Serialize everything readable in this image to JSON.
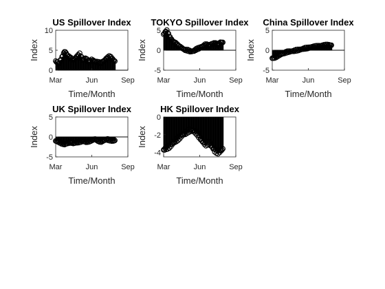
{
  "chart_data": [
    {
      "type": "bar",
      "title": "US Spillover Index",
      "xlabel": "Time/Month",
      "ylabel": "Index",
      "xticks": [
        "Mar",
        "Jun",
        "Sep"
      ],
      "xlim": [
        0,
        6
      ],
      "yticks": [
        "0",
        "5",
        "10"
      ],
      "ylim": [
        0,
        10
      ],
      "baseline": 0,
      "days": 150,
      "series": [
        {
          "marker": "o",
          "color": "#000000",
          "values": [
            [
              0.0,
              2.3
            ],
            [
              0.25,
              1.5
            ],
            [
              0.5,
              3.0
            ],
            [
              0.75,
              4.8
            ],
            [
              1.0,
              3.6
            ],
            [
              1.25,
              3.0
            ],
            [
              1.5,
              2.6
            ],
            [
              1.75,
              3.4
            ],
            [
              2.0,
              4.1
            ],
            [
              2.25,
              2.4
            ],
            [
              2.5,
              3.1
            ],
            [
              2.75,
              2.0
            ],
            [
              3.0,
              2.6
            ],
            [
              3.25,
              2.2
            ],
            [
              3.5,
              2.0
            ],
            [
              3.75,
              1.8
            ],
            [
              4.0,
              2.3
            ],
            [
              4.25,
              3.0
            ],
            [
              4.5,
              3.5
            ],
            [
              4.75,
              2.7
            ],
            [
              4.95,
              2.1
            ]
          ]
        }
      ]
    },
    {
      "type": "bar",
      "title": "TOKYO Spillover Index",
      "xlabel": "Time/Month",
      "ylabel": "Index",
      "xticks": [
        "Mar",
        "Jun",
        "Sep"
      ],
      "xlim": [
        0,
        6
      ],
      "yticks": [
        "-5",
        "0",
        "5"
      ],
      "ylim": [
        -5,
        5
      ],
      "baseline": 0,
      "days": 150,
      "series": [
        {
          "marker": "o",
          "color": "#000000",
          "values": [
            [
              0.0,
              4.0
            ],
            [
              0.25,
              5.0
            ],
            [
              0.5,
              3.3
            ],
            [
              0.75,
              2.3
            ],
            [
              1.0,
              1.8
            ],
            [
              1.25,
              1.0
            ],
            [
              1.5,
              0.6
            ],
            [
              1.75,
              0.1
            ],
            [
              2.0,
              0.0
            ],
            [
              2.25,
              -0.3
            ],
            [
              2.5,
              -0.2
            ],
            [
              2.75,
              0.3
            ],
            [
              3.0,
              0.6
            ],
            [
              3.25,
              1.0
            ],
            [
              3.5,
              1.5
            ],
            [
              3.75,
              1.1
            ],
            [
              4.0,
              1.6
            ],
            [
              4.25,
              1.8
            ],
            [
              4.5,
              1.4
            ],
            [
              4.75,
              2.0
            ],
            [
              4.95,
              1.9
            ]
          ]
        }
      ]
    },
    {
      "type": "bar",
      "title": "China Spillover Index",
      "xlabel": "Time/Month",
      "ylabel": "Index",
      "xticks": [
        "Mar",
        "Jun",
        "Sep"
      ],
      "xlim": [
        0,
        6
      ],
      "yticks": [
        "-5",
        "0",
        "5"
      ],
      "ylim": [
        -5,
        5
      ],
      "baseline": 0,
      "days": 150,
      "series": [
        {
          "marker": "o",
          "color": "#000000",
          "values": [
            [
              0.0,
              -2.0
            ],
            [
              0.25,
              -1.8
            ],
            [
              0.5,
              -1.3
            ],
            [
              0.75,
              -1.0
            ],
            [
              1.0,
              -0.7
            ],
            [
              1.25,
              -0.4
            ],
            [
              1.5,
              -0.3
            ],
            [
              1.75,
              -0.2
            ],
            [
              2.0,
              0.0
            ],
            [
              2.25,
              0.1
            ],
            [
              2.5,
              0.3
            ],
            [
              2.75,
              0.5
            ],
            [
              3.0,
              0.6
            ],
            [
              3.25,
              0.8
            ],
            [
              3.5,
              0.9
            ],
            [
              3.75,
              1.0
            ],
            [
              4.0,
              1.1
            ],
            [
              4.25,
              1.2
            ],
            [
              4.5,
              1.3
            ],
            [
              4.75,
              1.3
            ],
            [
              4.95,
              1.2
            ]
          ]
        }
      ]
    },
    {
      "type": "bar",
      "title": "UK Spillover Index",
      "xlabel": "Time/Month",
      "ylabel": "Index",
      "xticks": [
        "Mar",
        "Jun",
        "Sep"
      ],
      "xlim": [
        0,
        6
      ],
      "yticks": [
        "-5",
        "0",
        "5"
      ],
      "ylim": [
        -5,
        5
      ],
      "baseline": 0,
      "days": 150,
      "series": [
        {
          "marker": "o",
          "color": "#000000",
          "values": [
            [
              0.0,
              -1.0
            ],
            [
              0.25,
              -1.2
            ],
            [
              0.5,
              -1.6
            ],
            [
              0.75,
              -1.9
            ],
            [
              1.0,
              -1.5
            ],
            [
              1.25,
              -1.3
            ],
            [
              1.5,
              -1.6
            ],
            [
              1.75,
              -1.4
            ],
            [
              2.0,
              -1.2
            ],
            [
              2.25,
              -1.0
            ],
            [
              2.5,
              -1.3
            ],
            [
              2.75,
              -1.1
            ],
            [
              3.0,
              -0.8
            ],
            [
              3.25,
              -0.5
            ],
            [
              3.5,
              -0.9
            ],
            [
              3.75,
              -1.2
            ],
            [
              4.0,
              -0.9
            ],
            [
              4.25,
              -0.6
            ],
            [
              4.5,
              -0.8
            ],
            [
              4.75,
              -1.0
            ],
            [
              4.95,
              -0.9
            ]
          ]
        }
      ]
    },
    {
      "type": "bar",
      "title": "HK Spillover Index",
      "xlabel": "Time/Month",
      "ylabel": "Index",
      "xticks": [
        "Mar",
        "Jun",
        "Sep"
      ],
      "xlim": [
        0,
        6
      ],
      "yticks": [
        "-4",
        "-2",
        "0"
      ],
      "ylim": [
        -4.5,
        0
      ],
      "baseline": 0,
      "days": 150,
      "series": [
        {
          "marker": "o",
          "color": "#000000",
          "values": [
            [
              0.0,
              -3.7
            ],
            [
              0.25,
              -3.5
            ],
            [
              0.5,
              -3.3
            ],
            [
              0.75,
              -3.0
            ],
            [
              1.0,
              -2.7
            ],
            [
              1.25,
              -2.4
            ],
            [
              1.5,
              -2.1
            ],
            [
              1.75,
              -1.9
            ],
            [
              2.0,
              -1.6
            ],
            [
              2.25,
              -1.5
            ],
            [
              2.5,
              -1.6
            ],
            [
              2.75,
              -1.8
            ],
            [
              3.0,
              -2.3
            ],
            [
              3.25,
              -2.8
            ],
            [
              3.5,
              -3.1
            ],
            [
              3.75,
              -2.9
            ],
            [
              4.0,
              -3.3
            ],
            [
              4.25,
              -3.8
            ],
            [
              4.5,
              -4.0
            ],
            [
              4.75,
              -3.8
            ],
            [
              4.95,
              -3.6
            ]
          ]
        }
      ]
    }
  ]
}
